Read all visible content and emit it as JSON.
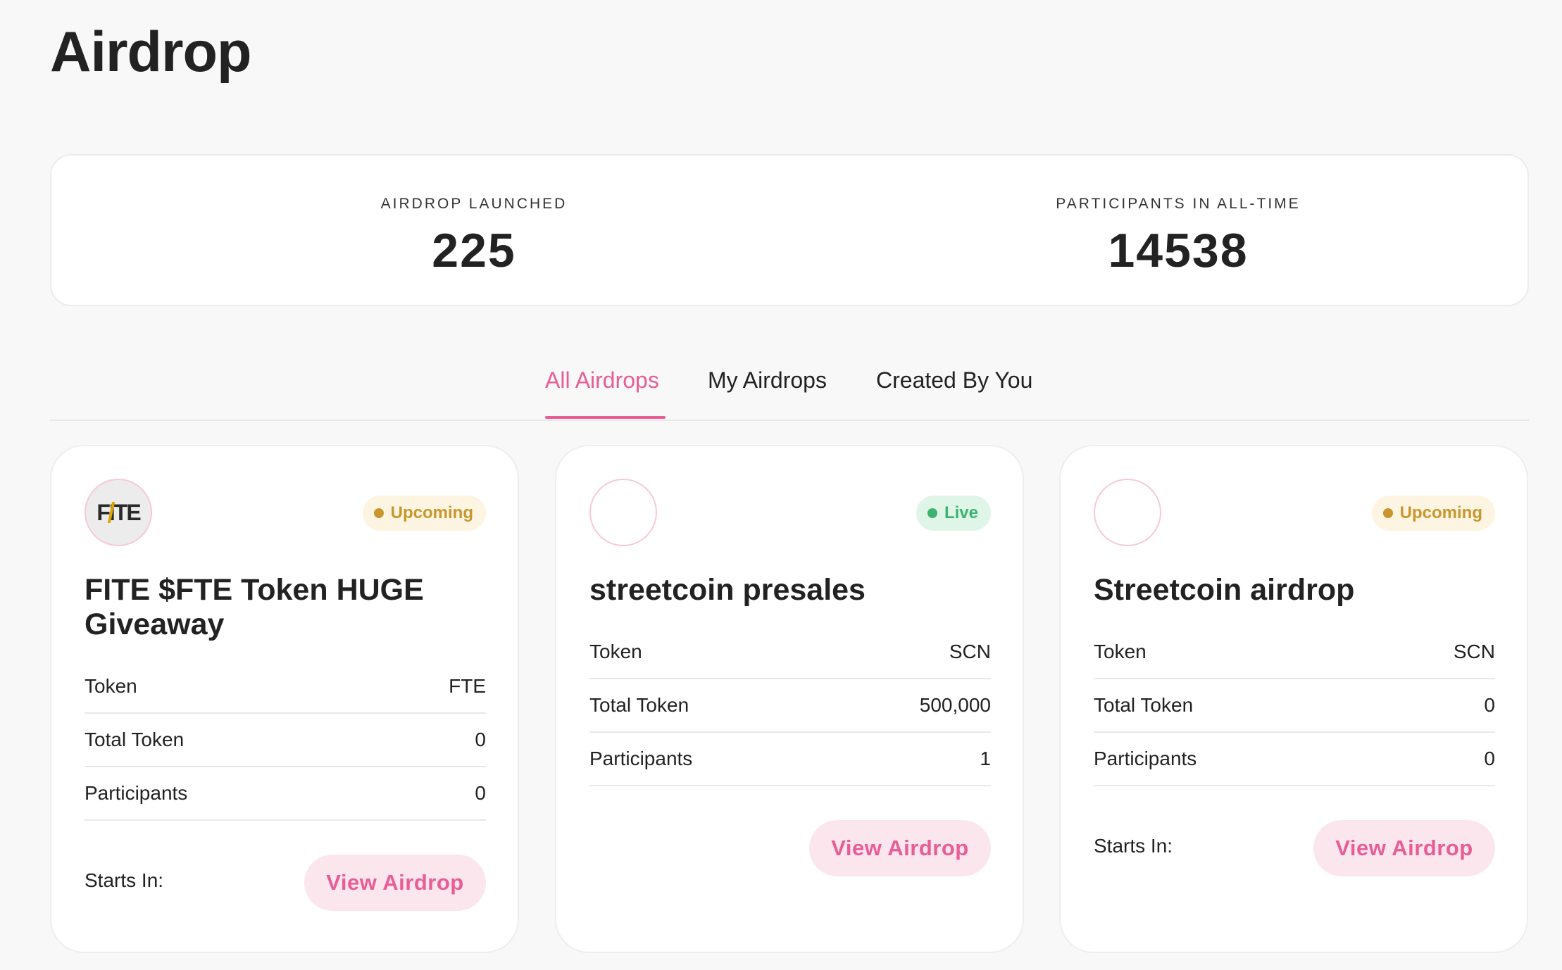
{
  "page": {
    "title": "Airdrop"
  },
  "stats": {
    "launched_label": "AIRDROP LAUNCHED",
    "launched_value": "225",
    "participants_label": "PARTICIPANTS IN ALL-TIME",
    "participants_value": "14538"
  },
  "tabs": [
    {
      "label": "All Airdrops",
      "active": true
    },
    {
      "label": "My Airdrops",
      "active": false
    },
    {
      "label": "Created By You",
      "active": false
    }
  ],
  "colors": {
    "accent": "#e85d95",
    "upcoming": "#c8962c",
    "live": "#3eb36f"
  },
  "cards": [
    {
      "logo_text": "FITE",
      "status": "Upcoming",
      "title": "FITE $FTE Token HUGE Giveaway",
      "rows": [
        {
          "label": "Token",
          "value": "FTE"
        },
        {
          "label": "Total Token",
          "value": "0"
        },
        {
          "label": "Participants",
          "value": "0"
        }
      ],
      "starts_label": "Starts In:",
      "button_label": "View Airdrop"
    },
    {
      "logo_text": "",
      "status": "Live",
      "title": "streetcoin presales",
      "rows": [
        {
          "label": "Token",
          "value": "SCN"
        },
        {
          "label": "Total Token",
          "value": "500,000"
        },
        {
          "label": "Participants",
          "value": "1"
        }
      ],
      "starts_label": "",
      "button_label": "View Airdrop"
    },
    {
      "logo_text": "",
      "status": "Upcoming",
      "title": "Streetcoin airdrop",
      "rows": [
        {
          "label": "Token",
          "value": "SCN"
        },
        {
          "label": "Total Token",
          "value": "0"
        },
        {
          "label": "Participants",
          "value": "0"
        }
      ],
      "starts_label": "Starts In:",
      "button_label": "View Airdrop"
    }
  ]
}
